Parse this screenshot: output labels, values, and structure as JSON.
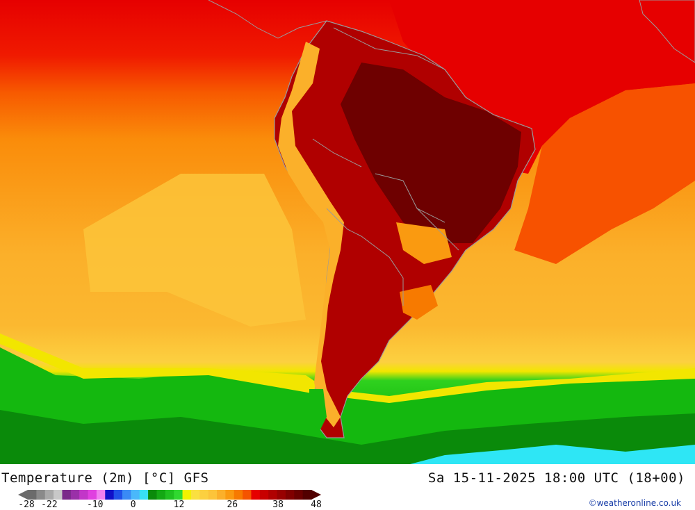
{
  "map": {
    "region": "South America",
    "layer": "2 m air temperature",
    "base_colors": {
      "hot_dark": "#6e0000",
      "hot": "#a80000",
      "red": "#e60000",
      "orange_red": "#f75200",
      "orange": "#fa8c0a",
      "light_orange": "#fbb02a",
      "yellow_orange": "#fcc43a",
      "yellow": "#f2e600",
      "green_light": "#2fd11e",
      "green": "#14b80f",
      "green_dark": "#0a9a0a",
      "cyan": "#2ee6f5",
      "border": "#9a9a9a"
    }
  },
  "footer": {
    "title": "Temperature (2m) [°C] GFS",
    "run_info": "Sa 15-11-2025 18:00 UTC (18+00)",
    "credit": "©weatheronline.co.uk"
  },
  "legend": {
    "colors": [
      "#6b6b6b",
      "#8a8a8a",
      "#a9a9a9",
      "#c8c8c8",
      "#7a2a8a",
      "#9a30a8",
      "#c236c8",
      "#e040e0",
      "#f080f0",
      "#1010c8",
      "#2050e8",
      "#3a8af5",
      "#4ab8fa",
      "#38e0f5",
      "#0a8a0a",
      "#14a814",
      "#20c020",
      "#30d830",
      "#f2f200",
      "#fae040",
      "#fcd040",
      "#fcc43a",
      "#fbb02a",
      "#fa9a10",
      "#f77a00",
      "#f55400",
      "#e60000",
      "#c80000",
      "#b00000",
      "#980000",
      "#800000",
      "#6a0000",
      "#520000"
    ],
    "ticks": [
      {
        "label": "-28",
        "value": -28
      },
      {
        "label": "-22",
        "value": -22
      },
      {
        "label": "-10",
        "value": -10
      },
      {
        "label": "0",
        "value": 0
      },
      {
        "label": "12",
        "value": 12
      },
      {
        "label": "26",
        "value": 26
      },
      {
        "label": "38",
        "value": 38
      },
      {
        "label": "48",
        "value": 48
      }
    ]
  }
}
